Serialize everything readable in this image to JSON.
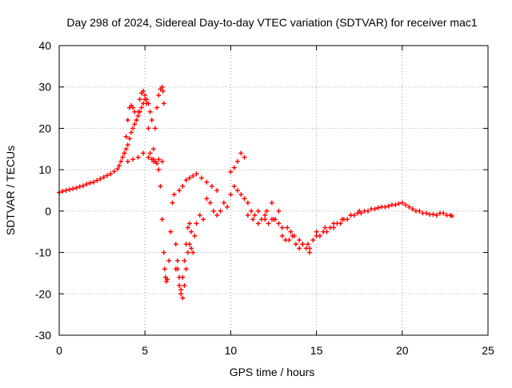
{
  "chart_data": {
    "type": "scatter",
    "title": "Day 298 of 2024, Sidereal Day-to-day VTEC variation (SDTVAR) for receiver mac1",
    "xlabel": "GPS time / hours",
    "ylabel": "SDTVAR / TECUs",
    "xlim": [
      0,
      25
    ],
    "ylim": [
      -30,
      40
    ],
    "xticks": [
      0,
      5,
      10,
      15,
      20,
      25
    ],
    "yticks": [
      -30,
      -20,
      -10,
      0,
      10,
      20,
      30,
      40
    ],
    "grid": true,
    "marker": "+",
    "color": "#ff0000",
    "series": [
      {
        "name": "SDTVAR",
        "x": [
          0.0,
          0.2,
          0.4,
          0.6,
          0.8,
          1.0,
          1.2,
          1.4,
          1.6,
          1.8,
          2.0,
          2.2,
          2.4,
          2.6,
          2.8,
          3.0,
          3.2,
          3.4,
          3.5,
          3.6,
          3.7,
          3.8,
          3.9,
          4.0,
          4.1,
          4.2,
          4.3,
          4.4,
          4.5,
          4.6,
          4.7,
          4.8,
          4.9,
          5.0,
          5.1,
          5.2,
          5.3,
          5.4,
          5.5,
          5.6,
          5.7,
          5.8,
          5.9,
          6.0,
          6.1,
          6.15,
          6.2,
          6.25,
          6.3,
          6.4,
          6.5,
          6.6,
          6.7,
          6.8,
          6.9,
          7.0,
          7.1,
          7.2,
          7.3,
          7.4,
          7.5,
          7.6,
          7.7,
          7.8,
          7.9,
          8.0,
          8.2,
          8.4,
          8.6,
          8.8,
          9.0,
          9.2,
          9.4,
          9.6,
          9.8,
          10.0,
          10.2,
          10.4,
          10.6,
          10.8,
          11.0,
          11.2,
          11.4,
          11.6,
          11.8,
          12.0,
          12.2,
          12.4,
          12.6,
          12.8,
          13.0,
          13.2,
          13.4,
          13.6,
          13.8,
          14.0,
          14.2,
          14.4,
          14.6,
          14.8,
          15.0,
          15.2,
          15.4,
          15.6,
          15.8,
          16.0,
          16.2,
          16.4,
          16.6,
          16.8,
          17.0,
          17.2,
          17.4,
          17.6,
          17.8,
          18.0,
          18.2,
          18.4,
          18.6,
          18.8,
          19.0,
          19.2,
          19.4,
          19.6,
          19.8,
          20.0,
          20.2,
          20.4,
          20.6,
          20.8,
          21.0,
          21.2,
          21.4,
          21.6,
          21.8,
          22.0,
          22.2,
          22.4,
          22.6,
          22.8,
          22.9,
          3.8,
          3.9,
          4.0,
          4.1,
          4.2,
          4.3,
          4.4,
          4.5,
          4.6,
          4.7,
          4.8,
          4.9,
          5.0,
          5.1,
          5.2,
          5.3,
          5.4,
          5.5,
          5.6,
          5.7,
          5.8,
          5.9,
          6.0,
          6.05,
          6.1,
          4.0,
          4.3,
          4.6,
          4.9,
          5.2,
          5.5,
          5.8,
          6.0,
          6.8,
          6.9,
          7.0,
          7.1,
          7.2,
          7.3,
          7.4,
          7.5,
          7.6,
          7.7,
          7.0,
          7.2,
          7.4,
          7.6,
          7.8,
          8.0,
          8.3,
          8.6,
          8.9,
          9.2,
          10.0,
          10.2,
          10.4,
          10.6,
          10.8,
          12.0,
          12.5,
          13.0,
          13.5,
          14.0,
          14.5,
          15.0,
          15.5,
          16.0,
          16.5,
          17.0,
          17.5,
          11.0,
          11.3,
          11.6,
          12.1,
          12.4,
          12.8,
          13.3,
          13.7,
          14.2,
          14.6
        ],
        "y": [
          4.5,
          4.8,
          5.0,
          5.2,
          5.4,
          5.6,
          5.9,
          6.1,
          6.5,
          6.8,
          7.0,
          7.4,
          7.8,
          8.2,
          8.6,
          9.0,
          9.6,
          10.2,
          11.0,
          12.0,
          13.0,
          14.0,
          15.0,
          16.0,
          17.5,
          19.0,
          20.0,
          21.0,
          22.0,
          23.0,
          24.0,
          25.0,
          26.0,
          27.0,
          26.0,
          20.0,
          14.0,
          12.5,
          12.0,
          12.0,
          11.5,
          10.0,
          6.0,
          -2.0,
          -10.0,
          -14.0,
          -16.0,
          -17.0,
          -16.5,
          -12.0,
          -5.0,
          2.0,
          4.0,
          -8.0,
          -14.0,
          -18.0,
          -20.0,
          -21.0,
          -18.0,
          -14.0,
          -10.0,
          -8.0,
          -9.0,
          -10.0,
          -6.0,
          -3.0,
          -1.0,
          -2.0,
          3.0,
          2.0,
          0.0,
          -1.0,
          0.0,
          2.0,
          1.0,
          4.0,
          6.0,
          5.0,
          4.0,
          3.0,
          2.0,
          0.0,
          -1.0,
          0.0,
          -2.0,
          -2.0,
          -3.0,
          -2.0,
          -2.0,
          -3.0,
          -6.0,
          -7.0,
          -7.0,
          -6.0,
          -8.0,
          -9.0,
          -8.0,
          -9.0,
          -10.0,
          -7.0,
          -5.0,
          -6.0,
          -5.0,
          -5.0,
          -4.0,
          -4.0,
          -3.0,
          -3.0,
          -2.0,
          -2.0,
          -1.0,
          -1.0,
          -0.5,
          -0.5,
          0.0,
          0.0,
          0.5,
          0.5,
          0.8,
          1.0,
          1.0,
          1.2,
          1.5,
          1.5,
          1.8,
          2.0,
          1.5,
          1.0,
          0.5,
          0.0,
          0.0,
          -0.5,
          -0.5,
          -0.8,
          -0.8,
          -1.0,
          -0.5,
          -0.5,
          -1.0,
          -1.0,
          -1.2,
          14.0,
          18.0,
          22.0,
          25.0,
          25.5,
          25.0,
          24.0,
          22.0,
          24.0,
          27.0,
          28.5,
          29.0,
          28.0,
          27.0,
          26.0,
          24.0,
          22.0,
          15.0,
          20.0,
          25.0,
          28.0,
          29.5,
          30.0,
          29.0,
          26.0,
          12.0,
          12.5,
          13.0,
          14.0,
          13.0,
          12.5,
          12.5,
          12.0,
          -14.0,
          -12.0,
          -16.0,
          -19.0,
          -16.0,
          -12.0,
          -8.0,
          -4.0,
          -3.0,
          -5.0,
          5.0,
          6.0,
          7.5,
          8.0,
          8.5,
          9.0,
          8.0,
          7.0,
          6.0,
          5.0,
          9.5,
          10.5,
          12.0,
          14.0,
          13.0,
          -1.0,
          -2.0,
          -4.0,
          -5.0,
          -7.0,
          -8.0,
          -6.0,
          -4.0,
          -3.0,
          -2.0,
          -1.0,
          0.0,
          -1.0,
          -2.0,
          -3.0,
          0.0,
          2.0,
          0.0,
          -4.0,
          -6.0,
          -8.0,
          -9.0
        ]
      }
    ]
  }
}
